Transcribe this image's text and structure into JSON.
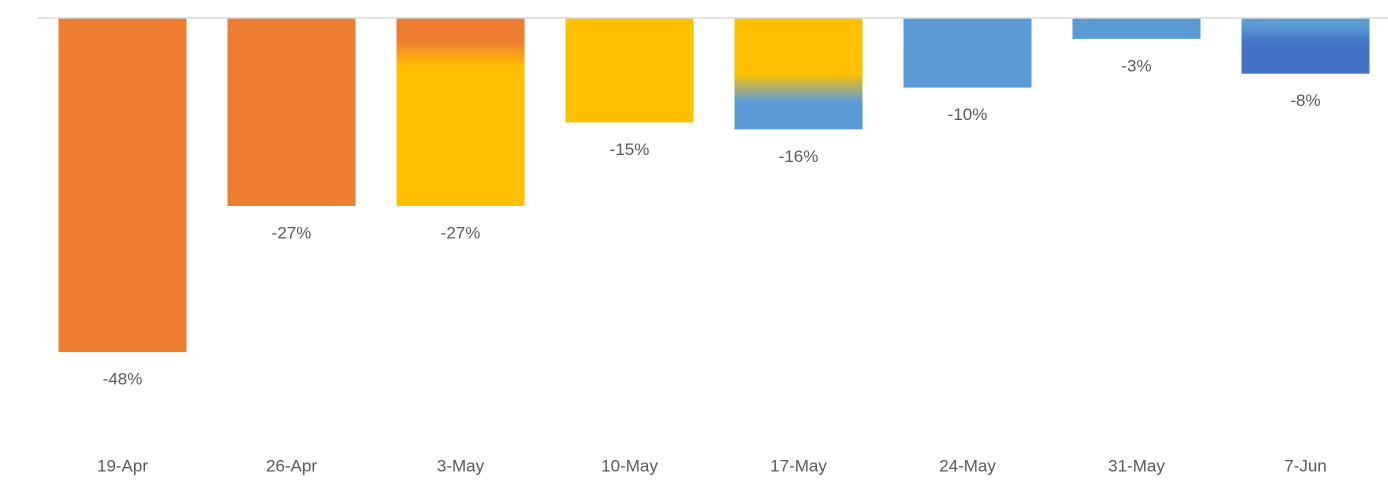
{
  "chart_data": {
    "type": "bar",
    "categories": [
      "19-Apr",
      "26-Apr",
      "3-May",
      "10-May",
      "17-May",
      "24-May",
      "31-May",
      "7-Jun"
    ],
    "values": [
      -48,
      -27,
      -27,
      -15,
      -16,
      -10,
      -3,
      -8
    ],
    "value_labels": [
      "-48%",
      "-27%",
      "-27%",
      "-15%",
      "-16%",
      "-10%",
      "-3%",
      "-8%"
    ],
    "colors": [
      [
        "#ED7D31"
      ],
      [
        "#ED7D31"
      ],
      [
        "#ED7D31",
        "#FFC000"
      ],
      [
        "#FFC000"
      ],
      [
        "#FFC000",
        "#5B9BD5"
      ],
      [
        "#5B9BD5"
      ],
      [
        "#5B9BD5"
      ],
      [
        "#5B9BD5",
        "#4472C4"
      ]
    ],
    "ylim": [
      -50,
      0
    ]
  }
}
